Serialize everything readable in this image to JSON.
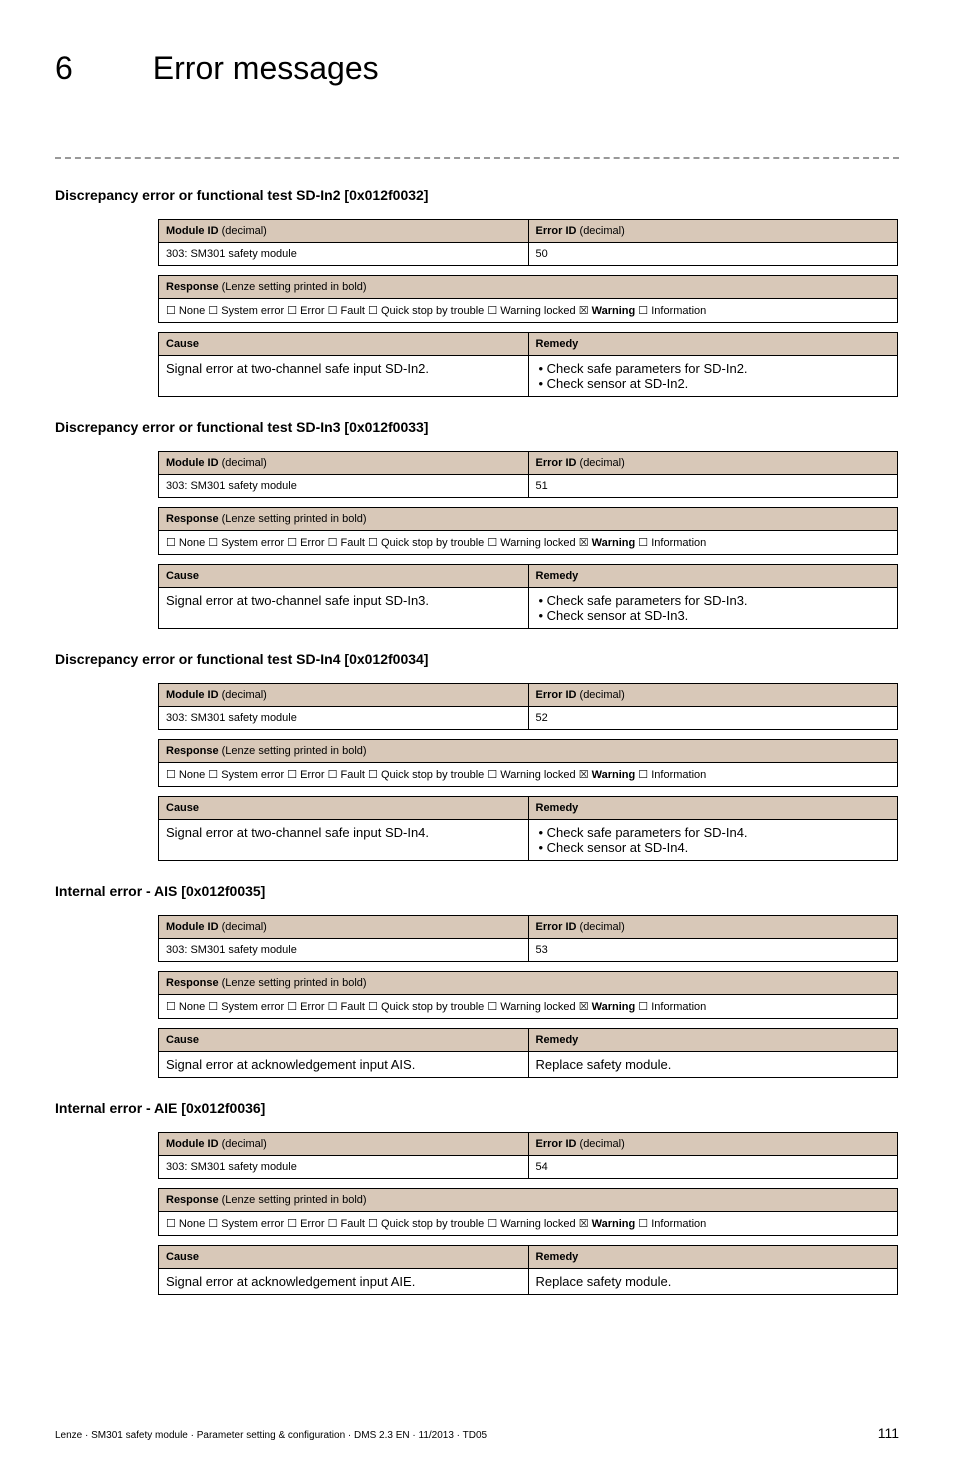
{
  "chapter": {
    "number": "6",
    "title": "Error messages"
  },
  "footer": {
    "left": "Lenze · SM301 safety module · Parameter setting & configuration · DMS 2.3 EN · 11/2013 · TD05",
    "page": "111"
  },
  "blocks": [
    {
      "heading": "Discrepancy error or functional test SD-In2 [0x012f0032]",
      "module_id_label": "Module ID",
      "module_id_paren": " (decimal)",
      "error_id_label": "Error ID",
      "error_id_paren": " (decimal)",
      "module_id_value": "303: SM301 safety module",
      "error_id_value": "50",
      "response_label": "Response",
      "response_paren": " (Lenze setting printed in bold)",
      "response_value_pre": "☐ None  ☐ System error  ☐ Error  ☐ Fault  ☐ Quick stop by trouble  ☐ Warning locked  ☒ ",
      "response_value_bold": "Warning",
      "response_value_post": "  ☐ Information",
      "cause_label": "Cause",
      "remedy_label": "Remedy",
      "cause_value": "Signal error at two-channel safe input SD-In2.",
      "remedy_items": [
        "Check safe parameters for SD-In2.",
        "Check sensor at SD-In2."
      ]
    },
    {
      "heading": "Discrepancy error or functional test SD-In3 [0x012f0033]",
      "module_id_label": "Module ID",
      "module_id_paren": " (decimal)",
      "error_id_label": "Error ID",
      "error_id_paren": " (decimal)",
      "module_id_value": "303: SM301 safety module",
      "error_id_value": "51",
      "response_label": "Response",
      "response_paren": " (Lenze setting printed in bold)",
      "response_value_pre": "☐ None  ☐ System error  ☐ Error  ☐ Fault  ☐ Quick stop by trouble  ☐ Warning locked  ☒ ",
      "response_value_bold": "Warning",
      "response_value_post": "  ☐ Information",
      "cause_label": "Cause",
      "remedy_label": "Remedy",
      "cause_value": "Signal error at two-channel safe input SD-In3.",
      "remedy_items": [
        "Check safe parameters for SD-In3.",
        "Check sensor at SD-In3."
      ]
    },
    {
      "heading": "Discrepancy error or functional test SD-In4 [0x012f0034]",
      "module_id_label": "Module ID",
      "module_id_paren": " (decimal)",
      "error_id_label": "Error ID",
      "error_id_paren": " (decimal)",
      "module_id_value": "303: SM301 safety module",
      "error_id_value": "52",
      "response_label": "Response",
      "response_paren": " (Lenze setting printed in bold)",
      "response_value_pre": "☐ None  ☐ System error  ☐ Error  ☐ Fault  ☐ Quick stop by trouble  ☐ Warning locked  ☒ ",
      "response_value_bold": "Warning",
      "response_value_post": "  ☐ Information",
      "cause_label": "Cause",
      "remedy_label": "Remedy",
      "cause_value": "Signal error at two-channel safe input SD-In4.",
      "remedy_items": [
        "Check safe parameters for SD-In4.",
        "Check sensor at SD-In4."
      ]
    },
    {
      "heading": "Internal error - AIS [0x012f0035]",
      "module_id_label": "Module ID",
      "module_id_paren": " (decimal)",
      "error_id_label": "Error ID",
      "error_id_paren": " (decimal)",
      "module_id_value": "303: SM301 safety module",
      "error_id_value": "53",
      "response_label": "Response",
      "response_paren": " (Lenze setting printed in bold)",
      "response_value_pre": "☐ None  ☐ System error  ☐ Error  ☐ Fault  ☐ Quick stop by trouble  ☐ Warning locked  ☒ ",
      "response_value_bold": "Warning",
      "response_value_post": "  ☐ Information",
      "cause_label": "Cause",
      "remedy_label": "Remedy",
      "cause_value": "Signal error at acknowledgement input AIS.",
      "remedy_plain": "Replace safety module."
    },
    {
      "heading": "Internal error - AIE [0x012f0036]",
      "module_id_label": "Module ID",
      "module_id_paren": " (decimal)",
      "error_id_label": "Error ID",
      "error_id_paren": " (decimal)",
      "module_id_value": "303: SM301 safety module",
      "error_id_value": "54",
      "response_label": "Response",
      "response_paren": " (Lenze setting printed in bold)",
      "response_value_pre": "☐ None  ☐ System error  ☐ Error  ☐ Fault  ☐ Quick stop by trouble  ☐ Warning locked  ☒ ",
      "response_value_bold": "Warning",
      "response_value_post": "  ☐ Information",
      "cause_label": "Cause",
      "remedy_label": "Remedy",
      "cause_value": "Signal error at acknowledgement input AIE.",
      "remedy_plain": "Replace safety module."
    }
  ]
}
